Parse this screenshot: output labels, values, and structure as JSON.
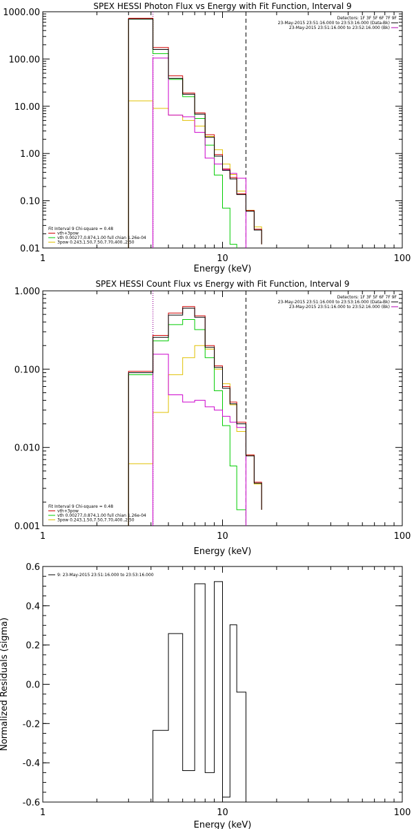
{
  "chart_data": [
    {
      "type": "line",
      "title": "SPEX HESSI Photon Flux vs Energy with Fit Function, Interval 9",
      "xlabel": "Energy (keV)",
      "ylabel": "",
      "xscale": "log",
      "yscale": "log",
      "xlim": [
        1,
        100
      ],
      "ylim": [
        0.01,
        1000
      ],
      "xticks": [
        "1",
        "10",
        "100"
      ],
      "yticks": [
        {
          "v": 0.01,
          "label": "0.01"
        },
        {
          "v": 0.1,
          "label": "0.10"
        },
        {
          "v": 1,
          "label": "1.00"
        },
        {
          "v": 10,
          "label": "10.00"
        },
        {
          "v": 100,
          "label": "100.00"
        },
        {
          "v": 1000,
          "label": "1000.00"
        }
      ],
      "vlines": [
        {
          "x": 4.1,
          "style": "dotted",
          "color": "#000000"
        },
        {
          "x": 4.1,
          "style": "dotted",
          "color": "#b000b0"
        },
        {
          "x": 13.5,
          "style": "dashed",
          "color": "#000000"
        }
      ],
      "header": [
        {
          "text": "Detectors: 1F 3F 5F 6F 7F 9F",
          "color": "#000000"
        },
        {
          "text": "23-May-2015 23:51:16.000 to 23:53:16.000 (Data-Bk)",
          "color": "#000000",
          "swatch": "#000000"
        },
        {
          "text": "23-May-2015 23:51:16.000 to 23:52:16.000 (Bk)",
          "color": "#000000",
          "swatch": "#b000b0"
        }
      ],
      "legend": [
        {
          "text": "Fit Interval 9   Chi-square = 0.48",
          "color": "#000000"
        },
        {
          "text": "vth+3pow",
          "color": "#d00000",
          "swatch": "#d00000"
        },
        {
          "text": "vth 0.00277,0.874,1.00  full chian 1.26e-04",
          "color": "#000000",
          "swatch": "#00cc00"
        },
        {
          "text": "3pow 0.243,1.50,7.50,7.70,400.,2.50",
          "color": "#000000",
          "swatch": "#e0c000"
        }
      ],
      "series": [
        {
          "color": "#e0c000",
          "edges": [
            3,
            4.1,
            5,
            6,
            7,
            8,
            9,
            10,
            11,
            12,
            13.5,
            15,
            16.5
          ],
          "values": [
            13,
            9,
            6.5,
            5,
            3.8,
            2.3,
            1.2,
            0.6,
            0.36,
            0.16,
            0.063,
            0.028,
            0.012
          ]
        },
        {
          "color": "#00cc00",
          "edges": [
            3,
            4.1,
            5,
            6,
            7,
            8,
            9,
            10,
            11,
            12
          ],
          "values": [
            700,
            130,
            37,
            16,
            5.5,
            1.5,
            0.35,
            0.07,
            0.012
          ]
        },
        {
          "color": "#cc00cc",
          "edges": [
            4.1,
            5,
            6,
            7,
            8,
            9,
            10,
            11,
            12,
            13.5
          ],
          "values": [
            105,
            6.5,
            6,
            2.8,
            0.8,
            0.6,
            0.45,
            0.38,
            0.3
          ]
        },
        {
          "color": "#d00000",
          "edges": [
            3,
            4.1,
            5,
            6,
            7,
            8,
            9,
            10,
            11,
            12,
            13.5,
            15,
            16.5
          ],
          "values": [
            730,
            175,
            44,
            19,
            7.2,
            2.5,
            0.95,
            0.47,
            0.31,
            0.14,
            0.062,
            0.025,
            0.012
          ]
        },
        {
          "color": "#000000",
          "edges": [
            3,
            4.1,
            5,
            6,
            7,
            8,
            9,
            10,
            11,
            12,
            13.5,
            15,
            16.5
          ],
          "values": [
            700,
            160,
            39,
            18,
            6.8,
            2.2,
            0.88,
            0.44,
            0.29,
            0.135,
            0.06,
            0.024,
            0.012
          ]
        }
      ]
    },
    {
      "type": "line",
      "title": "SPEX HESSI Count Flux vs Energy with Fit Function, Interval 9",
      "xlabel": "Energy (keV)",
      "ylabel": "",
      "xscale": "log",
      "yscale": "log",
      "xlim": [
        1,
        100
      ],
      "ylim": [
        0.001,
        1
      ],
      "xticks": [
        "1",
        "10",
        "100"
      ],
      "yticks": [
        {
          "v": 0.001,
          "label": "0.001"
        },
        {
          "v": 0.01,
          "label": "0.010"
        },
        {
          "v": 0.1,
          "label": "0.100"
        },
        {
          "v": 1,
          "label": "1.000"
        }
      ],
      "vlines": [
        {
          "x": 4.1,
          "style": "dotted",
          "color": "#000000"
        },
        {
          "x": 4.1,
          "style": "dotted",
          "color": "#b000b0"
        },
        {
          "x": 13.5,
          "style": "dashed",
          "color": "#000000"
        }
      ],
      "header": [
        {
          "text": "Detectors: 1F 3F 5F 6F 7F 9F",
          "color": "#000000"
        },
        {
          "text": "23-May-2015 23:51:16.000 to 23:53:16.000 (Data-Bk)",
          "color": "#000000",
          "swatch": "#000000"
        },
        {
          "text": "23-May-2015 23:51:16.000 to 23:52:16.000 (Bk)",
          "color": "#000000",
          "swatch": "#b000b0"
        }
      ],
      "legend": [
        {
          "text": "Fit Interval 9   Chi-square = 0.48",
          "color": "#000000"
        },
        {
          "text": "vth+3pow",
          "color": "#d00000",
          "swatch": "#d00000"
        },
        {
          "text": "vth 0.00277,0.874,1.00  full chian 1.26e-04",
          "color": "#000000",
          "swatch": "#00cc00"
        },
        {
          "text": "3pow 0.243,1.50,7.50,7.70,400.,2.50",
          "color": "#000000",
          "swatch": "#e0c000"
        }
      ],
      "series": [
        {
          "color": "#e0c000",
          "edges": [
            3,
            4.1,
            5,
            6,
            7,
            8,
            9,
            10,
            11,
            12,
            13.5,
            15,
            16.5
          ],
          "values": [
            0.0062,
            0.028,
            0.085,
            0.14,
            0.2,
            0.18,
            0.1,
            0.065,
            0.035,
            0.016,
            0.008,
            0.0034,
            0.0016
          ]
        },
        {
          "color": "#00cc00",
          "edges": [
            3,
            4.1,
            5,
            6,
            7,
            8,
            9,
            10,
            11,
            12,
            13.5
          ],
          "values": [
            0.085,
            0.23,
            0.37,
            0.43,
            0.32,
            0.14,
            0.053,
            0.019,
            0.0058,
            0.0016
          ]
        },
        {
          "color": "#cc00cc",
          "edges": [
            4.1,
            5,
            6,
            7,
            8,
            9,
            10,
            11,
            12,
            13.5
          ],
          "values": [
            0.155,
            0.047,
            0.038,
            0.04,
            0.033,
            0.03,
            0.025,
            0.021,
            0.018
          ]
        },
        {
          "color": "#d00000",
          "edges": [
            3,
            4.1,
            5,
            6,
            7,
            8,
            9,
            10,
            11,
            12,
            13.5,
            15,
            16.5
          ],
          "values": [
            0.094,
            0.27,
            0.52,
            0.63,
            0.48,
            0.2,
            0.11,
            0.06,
            0.038,
            0.021,
            0.008,
            0.0036,
            0.0016
          ]
        },
        {
          "color": "#000000",
          "edges": [
            3,
            4.1,
            5,
            6,
            7,
            8,
            9,
            10,
            11,
            12,
            13.5,
            15,
            16.5
          ],
          "values": [
            0.09,
            0.255,
            0.49,
            0.6,
            0.46,
            0.19,
            0.105,
            0.057,
            0.036,
            0.02,
            0.0078,
            0.0035,
            0.0016
          ]
        }
      ]
    },
    {
      "type": "line",
      "title": "",
      "xlabel": "Energy (keV)",
      "ylabel": "Normalized Residuals (sigma)",
      "xscale": "log",
      "yscale": "linear",
      "xlim": [
        1,
        100
      ],
      "ylim": [
        -0.6,
        0.6
      ],
      "xticks": [
        "1",
        "10",
        "100"
      ],
      "yticks": [
        {
          "v": 0.6,
          "label": "0.6"
        },
        {
          "v": 0.4,
          "label": "0.4"
        },
        {
          "v": 0.2,
          "label": "0.2"
        },
        {
          "v": 0.0,
          "label": "0.0"
        },
        {
          "v": -0.2,
          "label": "-0.2"
        },
        {
          "v": -0.4,
          "label": "-0.4"
        },
        {
          "v": -0.6,
          "label": "-0.6"
        }
      ],
      "legend": [
        {
          "text": "9: 23-May-2015 23:51:16.000 to 23:53:16.000",
          "color": "#000000",
          "swatch": "#000000"
        }
      ],
      "series": [
        {
          "color": "#000000",
          "edges": [
            4.1,
            5,
            6,
            7,
            8,
            9,
            10,
            11,
            12,
            13.5
          ],
          "values": [
            -0.235,
            0.258,
            -0.44,
            0.512,
            -0.45,
            0.523,
            -0.575,
            0.303,
            -0.04
          ]
        }
      ]
    }
  ]
}
